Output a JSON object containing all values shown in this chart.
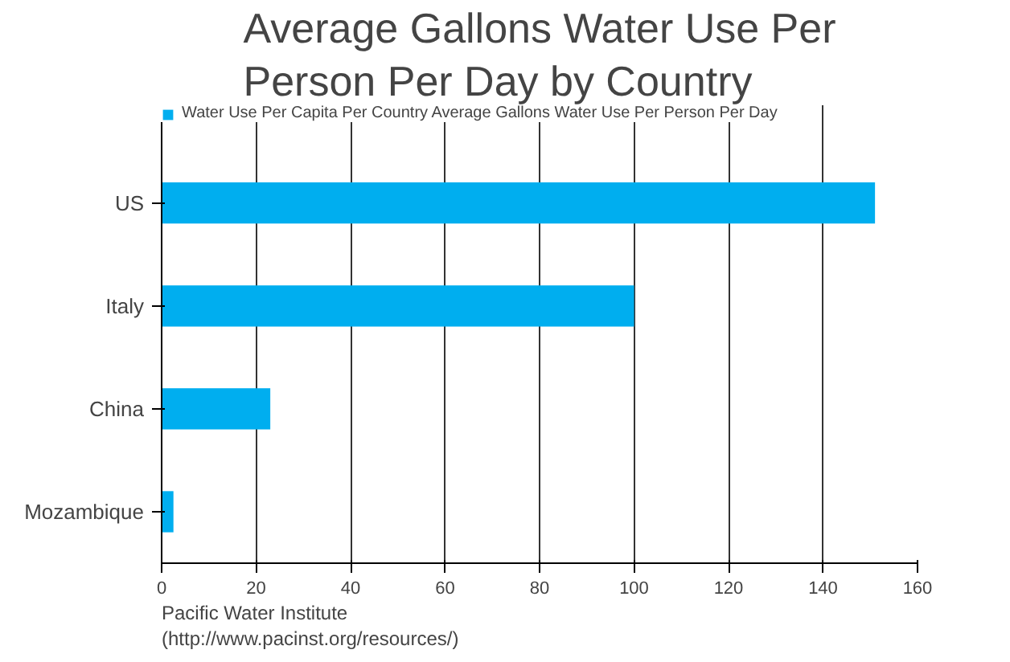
{
  "chart_data": {
    "type": "bar",
    "orientation": "horizontal",
    "title": "Average Gallons Water Use Per Person Per Day by Country",
    "categories": [
      "US",
      "Italy",
      "China",
      "Mozambique"
    ],
    "series": [
      {
        "name": "Water Use Per Capita Per Country Average Gallons Water Use Per Person Per Day",
        "color": "#00aeef",
        "values": [
          151,
          100,
          23,
          2.5
        ]
      }
    ],
    "xlim": [
      0,
      160
    ],
    "xticks": [
      0,
      20,
      40,
      60,
      80,
      100,
      120,
      140,
      160
    ],
    "grid": "x",
    "legend": "top",
    "annotations": [
      "Pacific Water Institute",
      "(http://www.pacinst.org/resources/)"
    ]
  }
}
